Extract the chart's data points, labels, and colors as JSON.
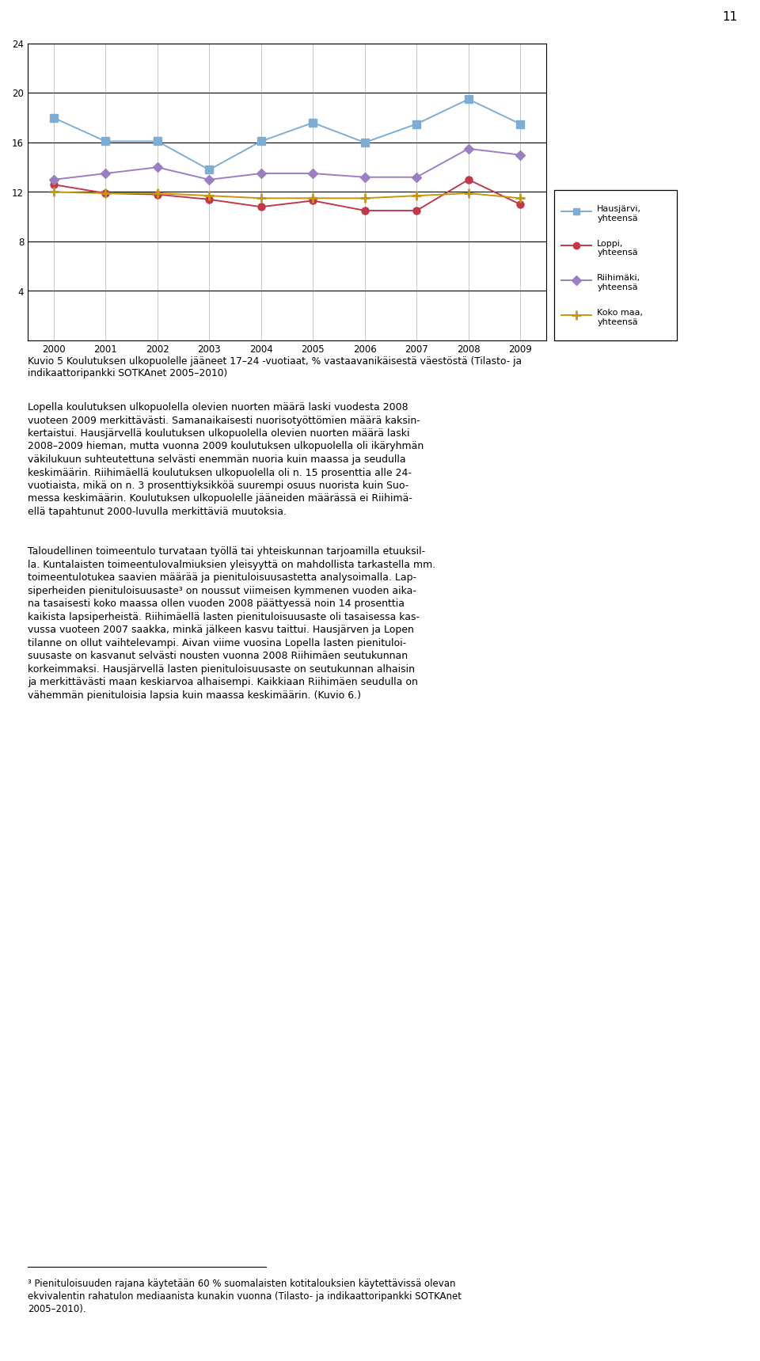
{
  "years": [
    2000,
    2001,
    2002,
    2003,
    2004,
    2005,
    2006,
    2007,
    2008,
    2009
  ],
  "hausjärvi": [
    18.0,
    16.1,
    16.1,
    13.8,
    16.1,
    17.6,
    16.0,
    17.5,
    19.5,
    17.5
  ],
  "loppi": [
    12.6,
    11.9,
    11.8,
    11.4,
    10.8,
    11.3,
    10.5,
    10.5,
    13.0,
    11.0
  ],
  "riihimäki": [
    13.0,
    13.5,
    14.0,
    13.0,
    13.5,
    13.5,
    13.2,
    13.2,
    15.5,
    15.0
  ],
  "koko_maa": [
    12.0,
    11.9,
    11.9,
    11.7,
    11.5,
    11.5,
    11.5,
    11.7,
    11.9,
    11.5
  ],
  "hausjärvi_color": "#7EADD4",
  "loppi_color": "#C0394B",
  "riihimäki_color": "#9B7FC0",
  "koko_maa_color": "#C8960C",
  "ylim": [
    0,
    24
  ],
  "yticks": [
    0,
    4,
    8,
    12,
    16,
    20,
    24
  ],
  "legend_labels": [
    "Hausjärvi,\nyhteensä",
    "Loppi,\nyhteensä",
    "Riihimäki,\nyhteensä",
    "Koko maa,\nyhteensä"
  ],
  "caption": "Kuvio 5 Koulutuksen ulkopuolelle jääneet 17–24 -vuotiaat, % vastaavanikäisestä väestöstä (Tilasto- ja\nindikaattoripankki SOTKAnet 2005–2010)",
  "page_number": "11",
  "body_paragraphs": [
    "Lopella koulutuksen ulkopuolella olevien nuorten määrä laski vuodesta 2008 vuoteen 2009 merkittävästi. Samanaikaisesti nuorisotyöttömien määrä kaksinkertaistui. Hausjärvellä koulutuksen ulkopuolella olevien nuorten määrä laski 2008–2009 hieman, mutta vuonna 2009 koulutuksen ulkopuolella oli ikäryhmän väkilukuun suhteutettuna selvästi enemmän nuoria kuin maassa ja seudulla keskimäärin. Riihimäellä koulutuksen ulkopuolella oli n. 15 prosenttia alle 24-vuotiaista, mikä on n. 3 prosenttiyksikköä suurempi osuus nuorista kuin Suomessa keskimäärin. Koulutuksen ulkopuolelle jääneiden määrässä ei Riihimäellä tapahtunut 2000-luvulla merkittäviä muutoksia.",
    "Taloudellinen toimeentulo turvataan työllä tai yhteiskunnan tarjoamilla etuuksilla. Kuntalaisten toimeentulovalmiuksien yleisyyttä on mahdollista tarkastella mm. toimeentulotukea saavien määrää ja pienituloisuusastetta analysoimalla. Lapsiperheiden pienituloisuusaste³ on noussut viimeisen kymmenen vuoden aikana tasaisesti koko maassa ollen vuoden 2008 päättyessä noin 14 prosenttia kaikista lapsiperheistä. Riihimäellä lasten pienituloisuusaste oli tasaisessa kasvussa vuoteen 2007 saakka, minkä jälkeen kasvu taittui. Hausjärven ja Lopen tilanne on ollut vaihtelevampi. Aivan viime vuosina Lopella lasten pienituloisuusaste on kasvanut selvästi nousten vuonna 2008 Riihimäen seutukunnan korkeimmaksi. Hausjärvellä lasten pienituloisuusaste on seutukunnan alhaisin ja merkittävästi maan keskiarvoa alhaisempi. Kaikkiaan Riihimäen seudulla on vähemmän pienituloisia lapsia kuin maassa keskimäärin. (Kuvio 6.)"
  ],
  "footnote_text": "³ Pienituloisuuden rajana käytetään 60 % suomalaisten kotitalouksien käytettävissä olevan\nekvivalentin rahatulon mediaanista kunakin vuonna (Tilasto- ja indikaattoripankki SOTKAnet\n2005–2010)."
}
